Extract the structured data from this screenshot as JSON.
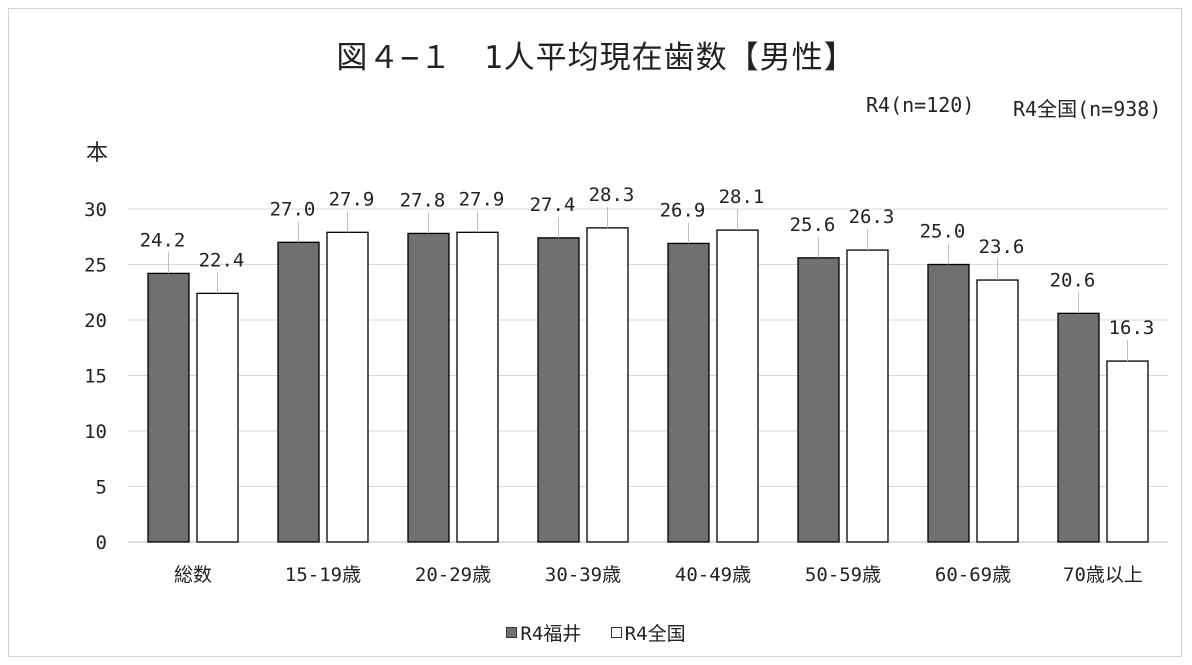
{
  "chart_data": {
    "type": "bar",
    "title": "図４−１　1人平均現在歯数【男性】",
    "ylabel": "本",
    "xlabel": "",
    "ylim": [
      0,
      30
    ],
    "yticks": [
      0,
      5,
      10,
      15,
      20,
      25,
      30
    ],
    "categories": [
      "総数",
      "15-19歳",
      "20-29歳",
      "30-39歳",
      "40-49歳",
      "50-59歳",
      "60-69歳",
      "70歳以上"
    ],
    "series": [
      {
        "name": "R4福井",
        "color": "#707070",
        "values": [
          24.2,
          27.0,
          27.8,
          27.4,
          26.9,
          25.6,
          25.0,
          20.6
        ],
        "labels": [
          "24.2",
          "27.0",
          "27.8",
          "27.4",
          "26.9",
          "25.6",
          "25.0",
          "20.6"
        ]
      },
      {
        "name": "R4全国",
        "color": "#ffffff",
        "values": [
          22.4,
          27.9,
          27.9,
          28.3,
          28.1,
          26.3,
          23.6,
          16.3
        ],
        "labels": [
          "22.4",
          "27.9",
          "27.9",
          "28.3",
          "28.1",
          "26.3",
          "23.6",
          "16.3"
        ]
      }
    ],
    "sample_sizes": [
      "R4(n=120)",
      "R4全国(n=938)"
    ],
    "legend_position": "bottom",
    "grid": true
  }
}
